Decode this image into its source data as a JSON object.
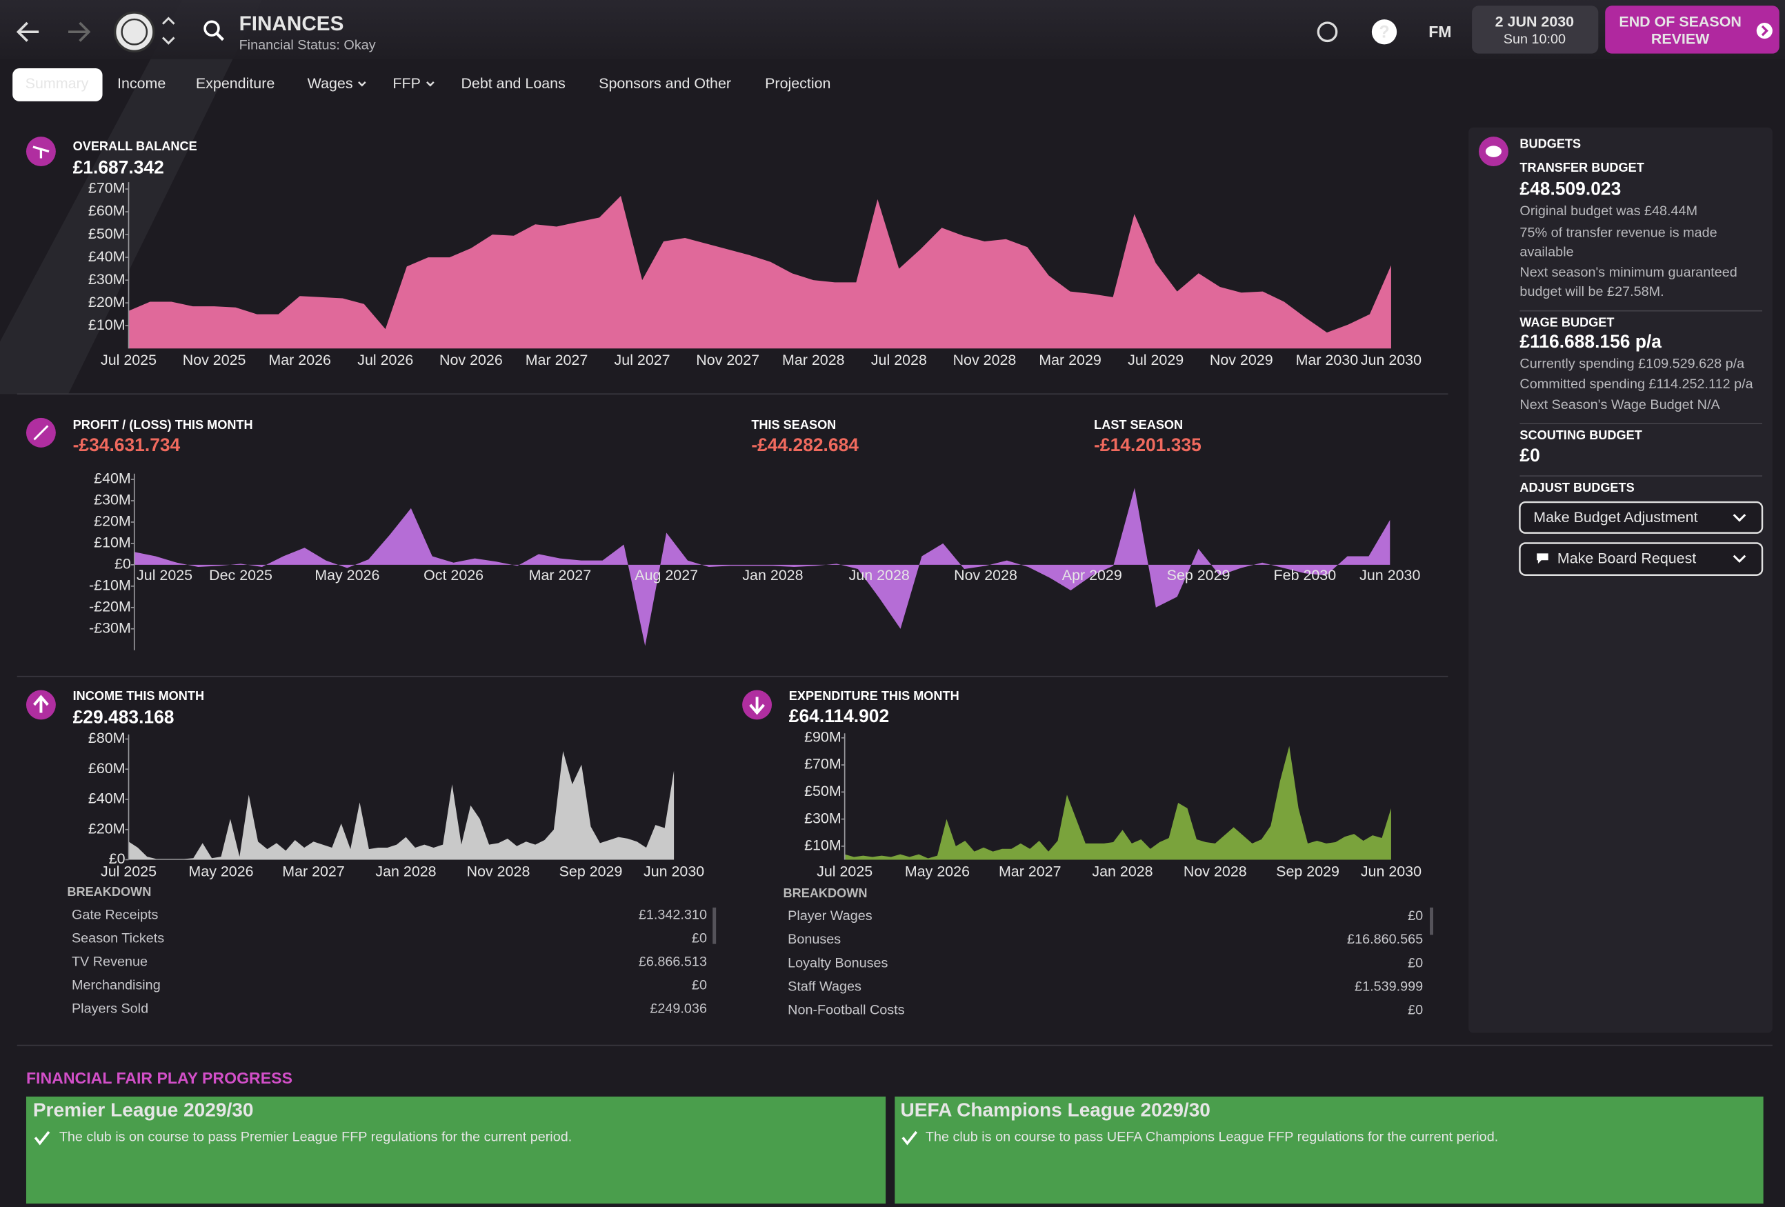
{
  "header": {
    "title": "FINANCES",
    "subtitle": "Financial Status: Okay",
    "logo": "FM",
    "date": "2 JUN 2030",
    "time": "Sun 10:00",
    "button": [
      "END OF SEASON",
      "REVIEW"
    ]
  },
  "tabs": [
    "Summary",
    "Income",
    "Expenditure",
    "Wages",
    "FFP",
    "Debt and Loans",
    "Sponsors and Other",
    "Projection"
  ],
  "balance": {
    "label": "OVERALL BALANCE",
    "value": "£1.687.342"
  },
  "profit": {
    "label": "PROFIT / (LOSS) THIS MONTH",
    "value": "-£34.631.734",
    "season_label": "THIS SEASON",
    "season_value": "-£44.282.684",
    "last_label": "LAST SEASON",
    "last_value": "-£14.201.335"
  },
  "income": {
    "label": "INCOME THIS MONTH",
    "value": "£29.483.168",
    "breakdown_title": "BREAKDOWN",
    "rows": [
      [
        "Gate Receipts",
        "£1.342.310"
      ],
      [
        "Season Tickets",
        "£0"
      ],
      [
        "TV Revenue",
        "£6.866.513"
      ],
      [
        "Merchandising",
        "£0"
      ],
      [
        "Players Sold",
        "£249.036"
      ]
    ]
  },
  "expenditure": {
    "label": "EXPENDITURE THIS MONTH",
    "value": "£64.114.902",
    "breakdown_title": "BREAKDOWN",
    "rows": [
      [
        "Player Wages",
        "£0"
      ],
      [
        "Bonuses",
        "£16.860.565"
      ],
      [
        "Loyalty Bonuses",
        "£0"
      ],
      [
        "Staff Wages",
        "£1.539.999"
      ],
      [
        "Non-Football Costs",
        "£0"
      ]
    ]
  },
  "budgets": {
    "title": "BUDGETS",
    "transfer_label": "TRANSFER BUDGET",
    "transfer_value": "£48.509.023",
    "transfer_notes": [
      "Original budget was £48.44M",
      "75% of transfer revenue is made available",
      "Next season's minimum guaranteed budget will be £27.58M."
    ],
    "wage_label": "WAGE BUDGET",
    "wage_value": "£116.688.156 p/a",
    "wage_notes": [
      "Currently spending £109.529.628 p/a",
      "Committed spending £114.252.112 p/a",
      "Next Season's Wage Budget N/A"
    ],
    "scouting_label": "SCOUTING BUDGET",
    "scouting_value": "£0",
    "adjust_label": "ADJUST BUDGETS",
    "buttons": [
      "Make Budget Adjustment",
      "Make Board Request"
    ]
  },
  "ffp": {
    "title": "FINANCIAL FAIR PLAY PROGRESS",
    "cards": [
      {
        "title": "Premier League 2029/30",
        "text": "The club is on course to pass Premier League FFP regulations for the current period."
      },
      {
        "title": "UEFA Champions League 2029/30",
        "text": "The club is on course to pass UEFA Champions League FFP regulations for the current period."
      }
    ]
  },
  "chart_data": [
    {
      "type": "area",
      "color": "#e0699a",
      "categories": [
        "Jul 2025",
        null,
        null,
        null,
        "Nov 2025",
        null,
        null,
        null,
        "Mar 2026",
        null,
        null,
        null,
        "Jul 2026",
        null,
        null,
        null,
        "Nov 2026",
        null,
        null,
        null,
        "Mar 2027",
        null,
        null,
        null,
        "Jul 2027",
        null,
        null,
        null,
        "Nov 2027",
        null,
        null,
        null,
        "Mar 2028",
        null,
        null,
        null,
        "Jul 2028",
        null,
        null,
        null,
        "Nov 2028",
        null,
        null,
        null,
        "Mar 2029",
        null,
        null,
        null,
        "Jul 2029",
        null,
        null,
        null,
        "Nov 2029",
        null,
        null,
        null,
        "Mar 2030",
        null,
        null,
        "Jun 2030"
      ],
      "values": [
        16.5,
        20.5,
        20.5,
        18.5,
        18.5,
        18,
        15,
        15,
        23,
        22.5,
        22,
        19.5,
        8.5,
        36,
        40,
        40,
        44,
        50,
        49.5,
        54.5,
        53.5,
        55.5,
        57.5,
        67,
        30,
        47,
        48.5,
        46,
        43.5,
        41,
        38,
        33,
        30,
        29,
        29,
        65.5,
        35,
        43.5,
        53,
        49.5,
        47,
        48,
        44.5,
        32,
        25,
        24,
        22.5,
        59,
        37.5,
        25,
        33,
        27,
        24.5,
        25,
        20.5,
        13.5,
        7,
        10.5,
        15,
        36.5
      ],
      "ylim": [
        0,
        70
      ],
      "yticks": [
        {
          "value": 10,
          "label": "£10M"
        },
        {
          "value": 20,
          "label": "£20M"
        },
        {
          "value": 30,
          "label": "£30M"
        },
        {
          "value": 40,
          "label": "£40M"
        },
        {
          "value": 50,
          "label": "£50M"
        },
        {
          "value": 60,
          "label": "£60M"
        },
        {
          "value": 70,
          "label": "£70M"
        }
      ]
    },
    {
      "type": "area",
      "color": "#b56dd6",
      "categories": [
        "Jul 2025",
        null,
        null,
        null,
        null,
        "Dec 2025",
        null,
        null,
        null,
        null,
        "May 2026",
        null,
        null,
        null,
        null,
        "Oct 2026",
        null,
        null,
        null,
        null,
        "Mar 2027",
        null,
        null,
        null,
        null,
        "Aug 2027",
        null,
        null,
        null,
        null,
        "Jan 2028",
        null,
        null,
        null,
        null,
        "Jun 2028",
        null,
        null,
        null,
        null,
        "Nov 2028",
        null,
        null,
        null,
        null,
        "Apr 2029",
        null,
        null,
        null,
        null,
        "Sep 2029",
        null,
        null,
        null,
        null,
        "Feb 2030",
        null,
        null,
        null,
        "Jun 2030"
      ],
      "values": [
        6,
        4,
        1,
        -1,
        -0.5,
        0.5,
        -1,
        4,
        8,
        2,
        -1.5,
        2.5,
        14,
        26.5,
        4,
        1,
        3,
        1.5,
        -0.5,
        5,
        3,
        2,
        2,
        9.5,
        -38,
        15,
        2,
        -1,
        -0.5,
        -0.5,
        -0.5,
        -1,
        -0.5,
        0.5,
        -2,
        -15.5,
        -30,
        4,
        10,
        -2,
        -0.5,
        2,
        -1,
        -6,
        -12,
        -5,
        -0.5,
        36,
        -20,
        -15,
        7.5,
        -5,
        -1.5,
        1,
        -1.5,
        -4,
        -5,
        4,
        4,
        21
      ],
      "ylim": [
        -40,
        40
      ],
      "yticks": [
        {
          "value": -30,
          "label": "-£30M"
        },
        {
          "value": -20,
          "label": "-£20M"
        },
        {
          "value": -10,
          "label": "-£10M"
        },
        {
          "value": 0,
          "label": "£0"
        },
        {
          "value": 10,
          "label": "£10M"
        },
        {
          "value": 20,
          "label": "£20M"
        },
        {
          "value": 30,
          "label": "£30M"
        },
        {
          "value": 40,
          "label": "£40M"
        }
      ]
    },
    {
      "type": "area",
      "color": "#c9c9c9",
      "categories": [
        "Jul 2025",
        null,
        null,
        null,
        null,
        null,
        null,
        null,
        null,
        null,
        "May 2026",
        null,
        null,
        null,
        null,
        null,
        null,
        null,
        null,
        null,
        "Mar 2027",
        null,
        null,
        null,
        null,
        null,
        null,
        null,
        null,
        null,
        "Jan 2028",
        null,
        null,
        null,
        null,
        null,
        null,
        null,
        null,
        null,
        "Nov 2028",
        null,
        null,
        null,
        null,
        null,
        null,
        null,
        null,
        null,
        "Sep 2029",
        null,
        null,
        null,
        null,
        null,
        null,
        null,
        null,
        "Jun 2030"
      ],
      "values": [
        12,
        8,
        2,
        0.5,
        0.5,
        0.5,
        0.5,
        1,
        11,
        1,
        2,
        27,
        2,
        43,
        12,
        7,
        11,
        6,
        13,
        8,
        12,
        10,
        8,
        24,
        7,
        38,
        7,
        8,
        8,
        10,
        15,
        8,
        10,
        8,
        10,
        50,
        10,
        36,
        27,
        10,
        11,
        14,
        9,
        12,
        10,
        13,
        20,
        72,
        50,
        63,
        22,
        11,
        13,
        15,
        14,
        12,
        8,
        23,
        21,
        59
      ],
      "ylim": [
        0,
        80
      ],
      "yticks": [
        {
          "value": 0,
          "label": "£0"
        },
        {
          "value": 20,
          "label": "£20M"
        },
        {
          "value": 40,
          "label": "£40M"
        },
        {
          "value": 60,
          "label": "£60M"
        },
        {
          "value": 80,
          "label": "£80M"
        }
      ]
    },
    {
      "type": "area",
      "color": "#7aa33c",
      "categories": [
        "Jul 2025",
        null,
        null,
        null,
        null,
        null,
        null,
        null,
        null,
        null,
        "May 2026",
        null,
        null,
        null,
        null,
        null,
        null,
        null,
        null,
        null,
        "Mar 2027",
        null,
        null,
        null,
        null,
        null,
        null,
        null,
        null,
        null,
        "Jan 2028",
        null,
        null,
        null,
        null,
        null,
        null,
        null,
        null,
        null,
        "Nov 2028",
        null,
        null,
        null,
        null,
        null,
        null,
        null,
        null,
        null,
        "Sep 2029",
        null,
        null,
        null,
        null,
        null,
        null,
        null,
        null,
        "Jun 2030"
      ],
      "values": [
        4,
        2,
        3,
        2,
        3,
        2,
        4,
        2,
        4,
        1,
        3,
        30,
        10,
        14,
        6,
        9,
        6,
        8,
        8,
        12,
        8,
        14,
        6,
        14,
        48,
        30,
        12,
        12,
        12,
        13,
        22,
        12,
        15,
        8,
        13,
        16,
        42,
        38,
        15,
        13,
        12,
        18,
        24,
        18,
        12,
        15,
        25,
        58,
        84,
        38,
        12,
        14,
        12,
        13,
        17,
        19,
        14,
        18,
        16,
        38
      ],
      "ylim": [
        0,
        90
      ],
      "yticks": [
        {
          "value": 10,
          "label": "£10M"
        },
        {
          "value": 30,
          "label": "£30M"
        },
        {
          "value": 50,
          "label": "£50M"
        },
        {
          "value": 70,
          "label": "£70M"
        },
        {
          "value": 90,
          "label": "£90M"
        }
      ]
    }
  ]
}
